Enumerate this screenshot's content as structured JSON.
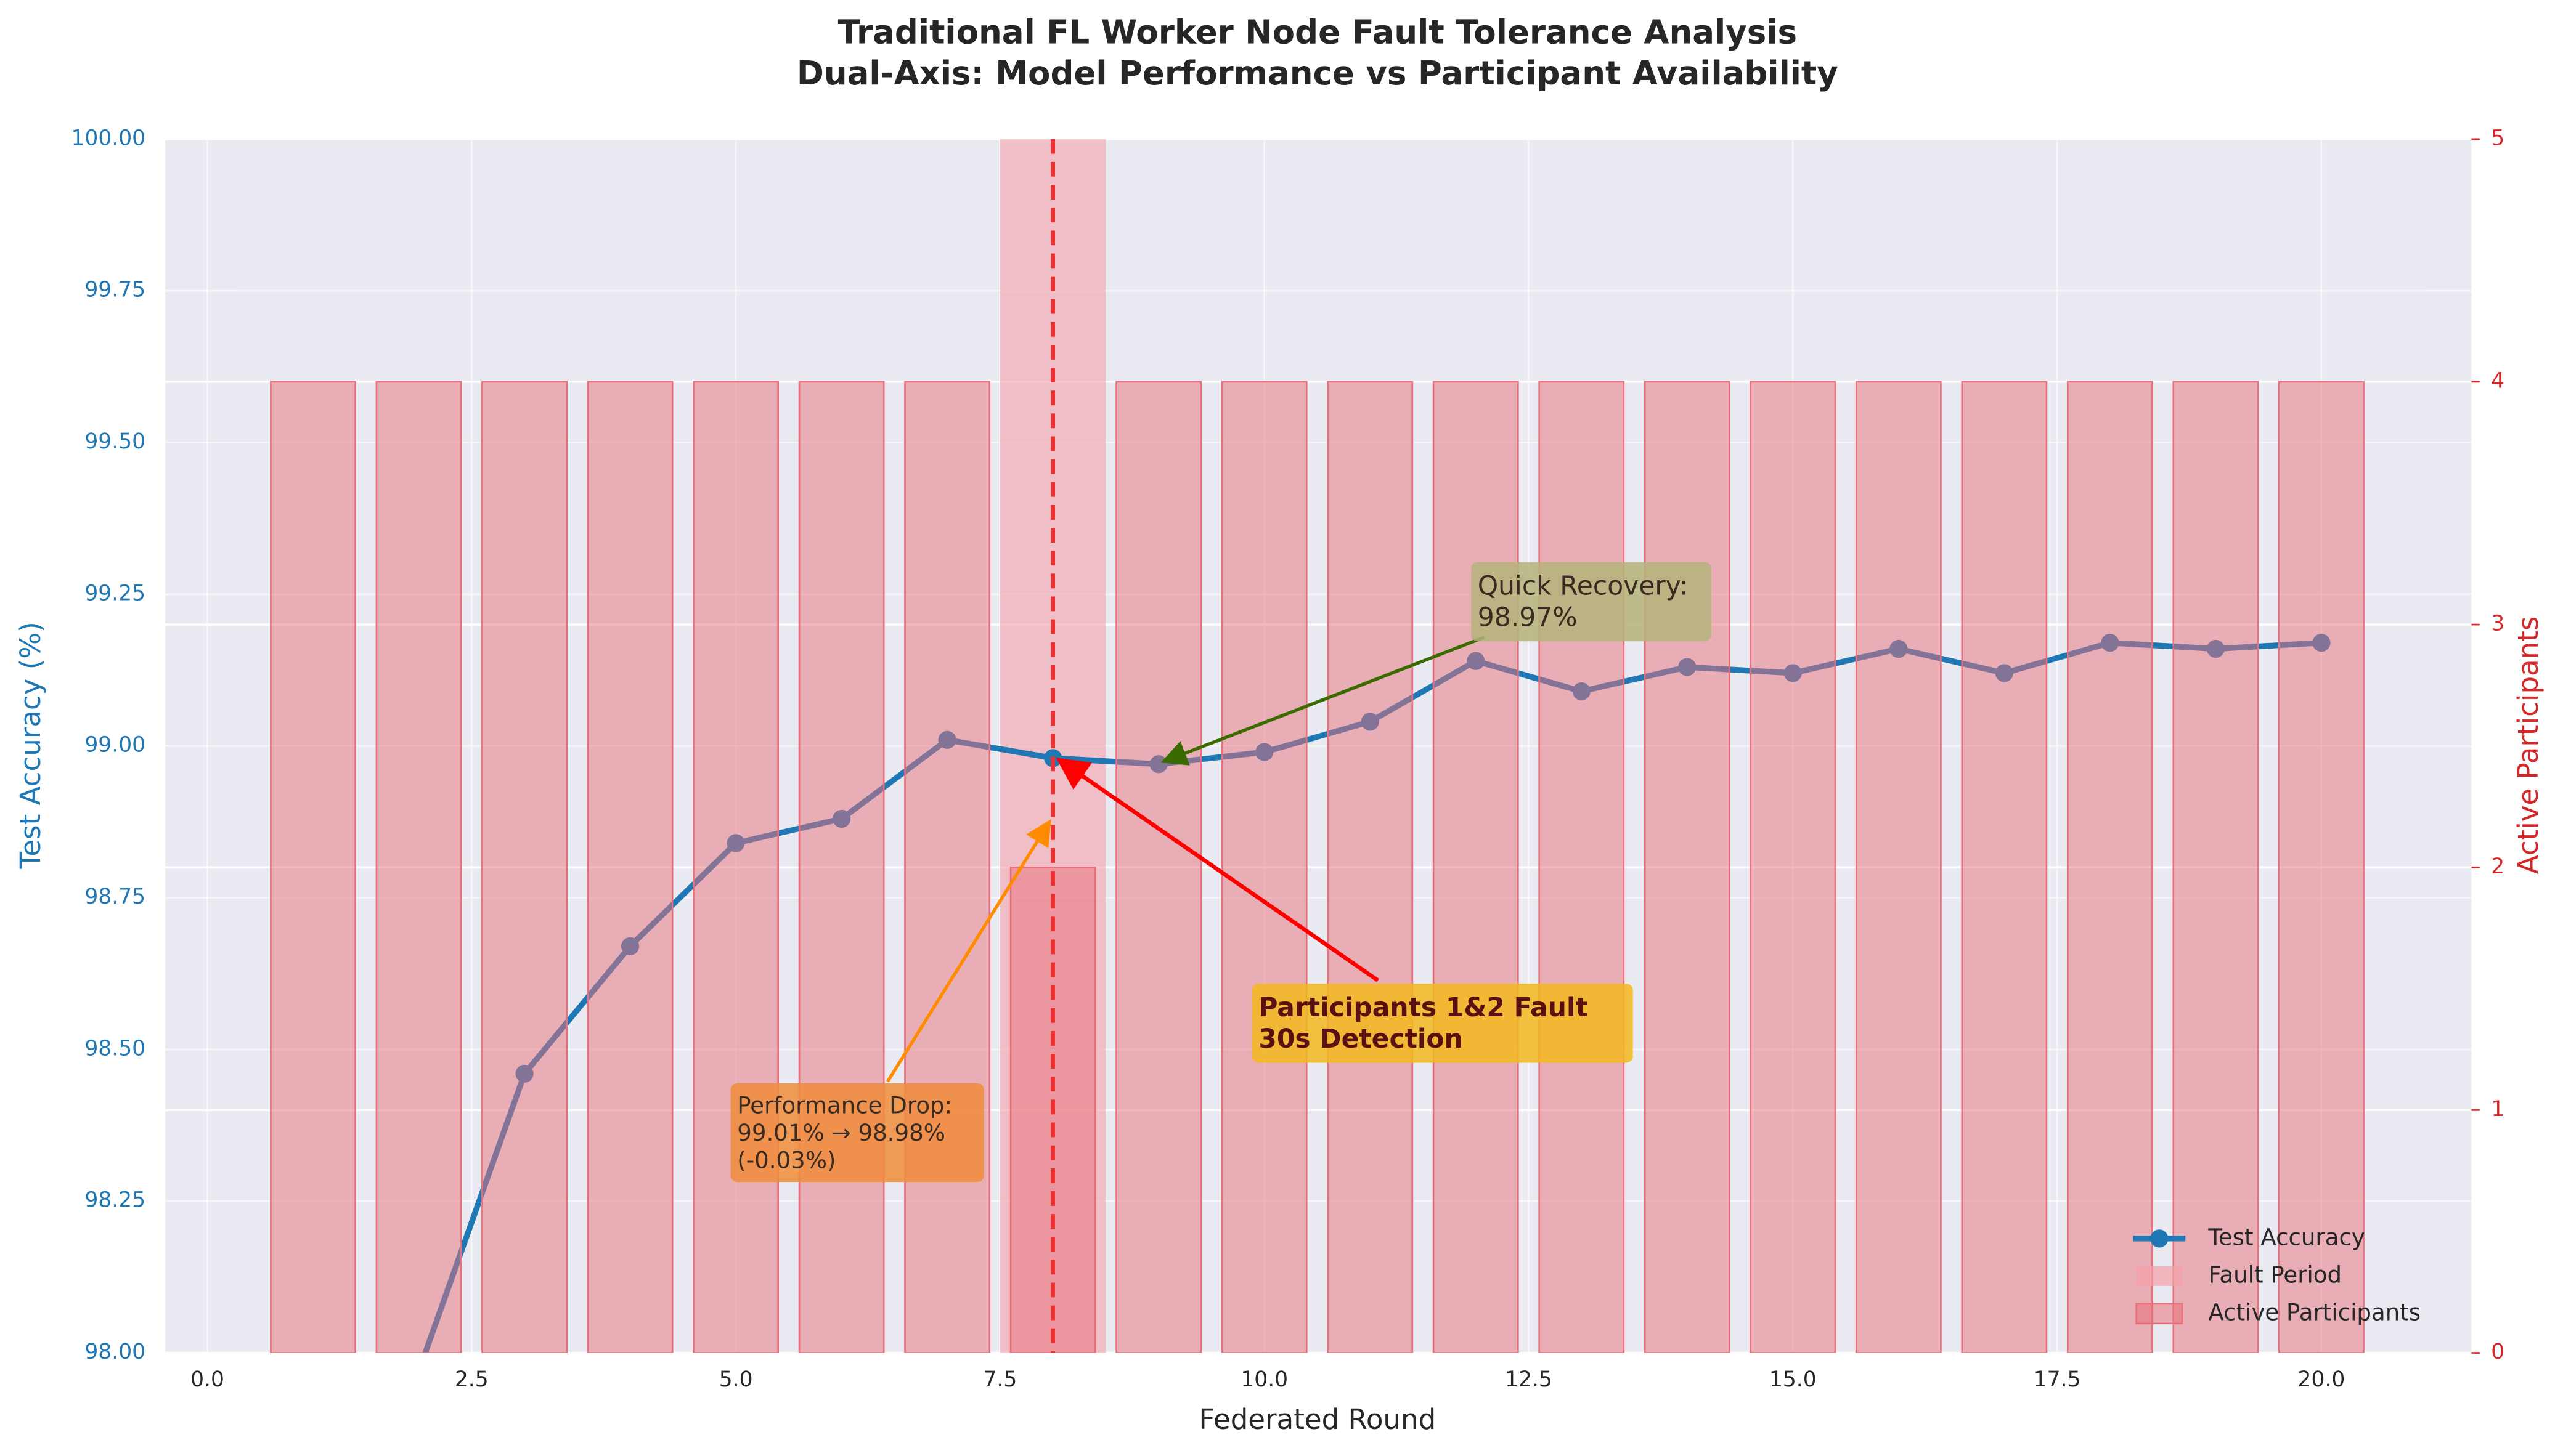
{
  "chart_data": {
    "type": "line",
    "title": "Traditional FL Worker Node Fault Tolerance Analysis",
    "subtitle": "Dual-Axis: Model Performance vs Participant Availability",
    "x_label": "Federated Round",
    "y_label": "Test Accuracy (%)",
    "y2_label": "Active Participants",
    "x": [
      1,
      2,
      3,
      4,
      5,
      6,
      7,
      8,
      9,
      10,
      11,
      12,
      13,
      14,
      15,
      16,
      17,
      18,
      19,
      20
    ],
    "series": [
      {
        "name": "Test Accuracy",
        "type": "line",
        "color": "#1f77b4",
        "values": [
          null,
          97.97,
          98.46,
          98.67,
          98.84,
          98.88,
          99.01,
          98.98,
          98.97,
          98.99,
          99.04,
          99.14,
          99.09,
          99.13,
          99.12,
          99.16,
          99.12,
          99.17,
          99.16,
          99.17
        ]
      },
      {
        "name": "Active Participants",
        "type": "bar",
        "axis": "y2",
        "color": "#e8707a",
        "values": [
          4,
          4,
          4,
          4,
          4,
          4,
          4,
          2,
          4,
          4,
          4,
          4,
          4,
          4,
          4,
          4,
          4,
          4,
          4,
          4
        ]
      }
    ],
    "fault_period": {
      "name": "Fault Period",
      "start": 7.5,
      "end": 8.5,
      "color": "#f4a0a8"
    },
    "fault_line": 8,
    "xlim": [
      -0.4,
      21.42
    ],
    "xticks": [
      {
        "value": 0,
        "label": "0.0"
      },
      {
        "value": 2.5,
        "label": "2.5"
      },
      {
        "value": 5,
        "label": "5.0"
      },
      {
        "value": 7.5,
        "label": "7.5"
      },
      {
        "value": 10,
        "label": "10.0"
      },
      {
        "value": 12.5,
        "label": "12.5"
      },
      {
        "value": 15,
        "label": "15.0"
      },
      {
        "value": 17.5,
        "label": "17.5"
      },
      {
        "value": 20,
        "label": "20.0"
      }
    ],
    "ylim": [
      98,
      100
    ],
    "yticks": [
      {
        "value": 98,
        "label": "98.00"
      },
      {
        "value": 98.25,
        "label": "98.25"
      },
      {
        "value": 98.5,
        "label": "98.50"
      },
      {
        "value": 98.75,
        "label": "98.75"
      },
      {
        "value": 99,
        "label": "99.00"
      },
      {
        "value": 99.25,
        "label": "99.25"
      },
      {
        "value": 99.5,
        "label": "99.50"
      },
      {
        "value": 99.75,
        "label": "99.75"
      },
      {
        "value": 100,
        "label": "100.00"
      }
    ],
    "y2lim": [
      0,
      5
    ],
    "y2ticks": [
      0,
      1,
      2,
      3,
      4,
      5
    ],
    "grid": true,
    "legend": "lower right",
    "annotations": [
      {
        "lines": [
          "Performance Drop:",
          "99.01% → 98.98%",
          "(-0.03%)"
        ]
      },
      {
        "lines": [
          "Participants 1&2 Fault",
          "30s Detection"
        ]
      },
      {
        "lines": [
          "Quick Recovery:",
          "98.97%"
        ]
      }
    ]
  }
}
